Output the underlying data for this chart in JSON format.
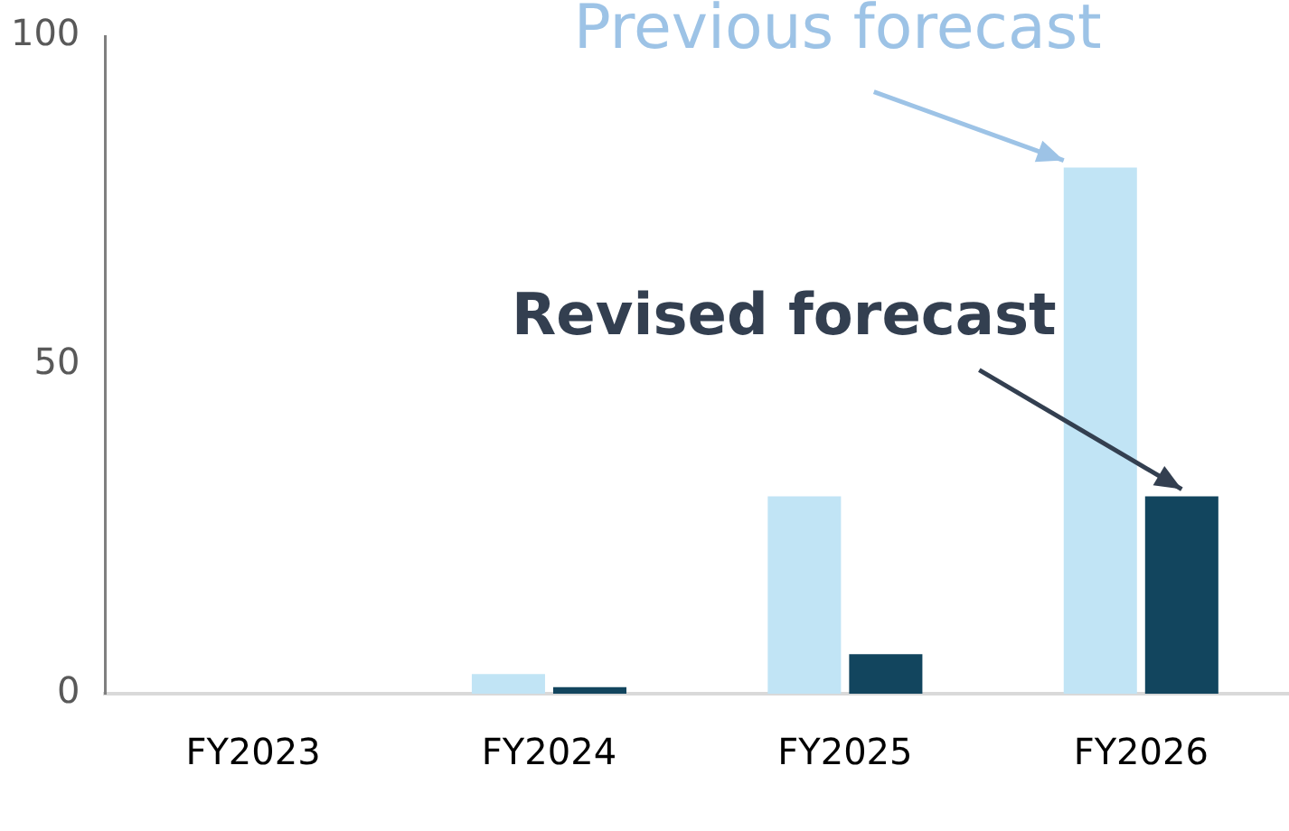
{
  "chart_data": {
    "type": "bar",
    "categories": [
      "FY2023",
      "FY2024",
      "FY2025",
      "FY2026"
    ],
    "series": [
      {
        "color": "#c1e4f5",
        "values": [
          0,
          3,
          30,
          80
        ]
      },
      {
        "color": "#12455e",
        "values": [
          0,
          1,
          6,
          30
        ]
      }
    ],
    "ylim": [
      0,
      100
    ],
    "yticks": [
      0,
      50,
      100
    ],
    "grid": false,
    "legend": false,
    "annotations": [
      {
        "text": "Previous forecast",
        "x": "FY2026",
        "y": 80
      },
      {
        "text": "Revised forecast",
        "x": "FY2026",
        "y": 30
      }
    ]
  }
}
